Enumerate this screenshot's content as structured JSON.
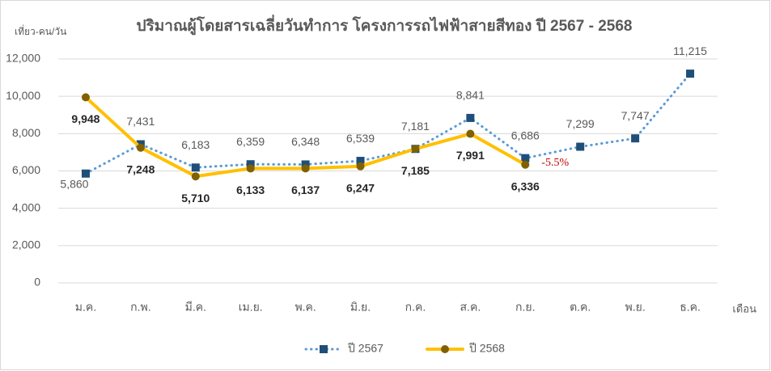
{
  "chart_data": {
    "type": "line",
    "title": "ปริมาณผู้โดยสารเฉลี่ยวันทำการ โครงการรถไฟฟ้าสายสีทอง ปี 2567 - 2568",
    "y_label": "เที่ยว-คน/วัน",
    "x_label": "เดือน",
    "categories": [
      "ม.ค.",
      "ก.พ.",
      "มี.ค.",
      "เม.ย.",
      "พ.ค.",
      "มิ.ย.",
      "ก.ค.",
      "ส.ค.",
      "ก.ย.",
      "ต.ค.",
      "พ.ย.",
      "ธ.ค."
    ],
    "series": [
      {
        "name": "ปี 2567",
        "color": "#5b9bd5",
        "marker_color": "#1f4e79",
        "marker": "square",
        "line_style": "dotted",
        "values": [
          5860,
          7431,
          6183,
          6359,
          6348,
          6539,
          7181,
          8841,
          6686,
          7299,
          7747,
          11215
        ],
        "value_labels": [
          "5,860",
          "7,431",
          "6,183",
          "6,359",
          "6,348",
          "6,539",
          "7,181",
          "8,841",
          "6,686",
          "7,299",
          "7,747",
          "11,215"
        ]
      },
      {
        "name": "ปี 2568",
        "color": "#ffc000",
        "marker_color": "#806000",
        "marker": "circle",
        "line_style": "solid",
        "values": [
          9948,
          7248,
          5710,
          6133,
          6137,
          6247,
          7185,
          7991,
          6336,
          null,
          null,
          null
        ],
        "value_labels": [
          "9,948",
          "7,248",
          "5,710",
          "6,133",
          "6,137",
          "6,247",
          "7,185",
          "7,991",
          "6,336",
          null,
          null,
          null
        ]
      }
    ],
    "annotations": [
      "-5.5%"
    ],
    "ylim": [
      0,
      12000
    ],
    "yticks": [
      0,
      {
        "value": 2000,
        "label": "2,000"
      },
      {
        "value": 4000,
        "label": "4,000"
      },
      {
        "value": 6000,
        "label": "6,000"
      },
      {
        "value": 8000,
        "label": "8,000"
      },
      {
        "value": 10000,
        "label": "10,000"
      },
      {
        "value": 12000,
        "label": "12,000"
      }
    ],
    "grid": true,
    "legend": "bottom"
  }
}
